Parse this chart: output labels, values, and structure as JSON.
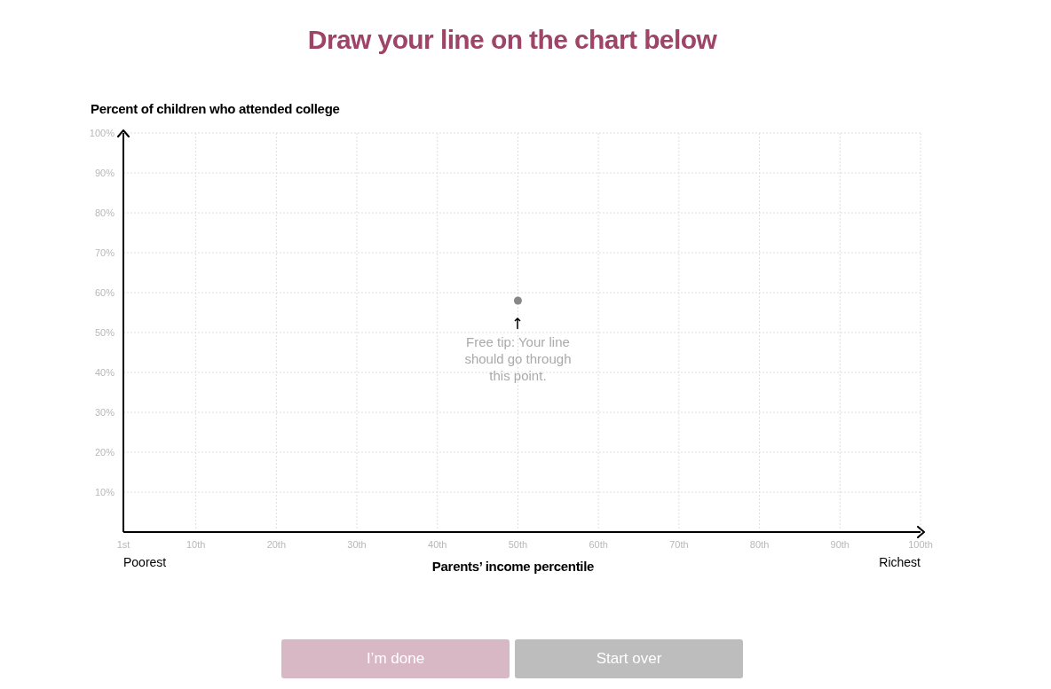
{
  "chart_data": {
    "type": "scatter",
    "title": "Draw your line on the chart below",
    "xlabel": "Parents’ income percentile",
    "ylabel": "Percent of children who attended college",
    "x": [
      50
    ],
    "series": [
      {
        "color": "#888888",
        "values": [
          58
        ]
      }
    ],
    "marker": "circle",
    "xlim": [
      1,
      100
    ],
    "xticks": [
      {
        "value": 1,
        "label": "1st"
      },
      {
        "value": 10,
        "label": "10th"
      },
      {
        "value": 20,
        "label": "20th"
      },
      {
        "value": 30,
        "label": "30th"
      },
      {
        "value": 40,
        "label": "40th"
      },
      {
        "value": 50,
        "label": "50th"
      },
      {
        "value": 60,
        "label": "60th"
      },
      {
        "value": 70,
        "label": "70th"
      },
      {
        "value": 80,
        "label": "80th"
      },
      {
        "value": 90,
        "label": "90th"
      },
      {
        "value": 100,
        "label": "100th"
      }
    ],
    "ylim": [
      0,
      100
    ],
    "yticks": [
      {
        "value": 10,
        "label": "10%"
      },
      {
        "value": 20,
        "label": "20%"
      },
      {
        "value": 30,
        "label": "30%"
      },
      {
        "value": 40,
        "label": "40%"
      },
      {
        "value": 50,
        "label": "50%"
      },
      {
        "value": 60,
        "label": "60%"
      },
      {
        "value": 70,
        "label": "70%"
      },
      {
        "value": 80,
        "label": "80%"
      },
      {
        "value": 90,
        "label": "90%"
      },
      {
        "value": 100,
        "label": "100%"
      }
    ],
    "grid": true,
    "annotations": [
      "Poorest",
      "Richest",
      {
        "text": "Free tip: Your line should go through this point.",
        "x": 50,
        "y": 58
      },
      "I’m done",
      "Start over"
    ]
  }
}
